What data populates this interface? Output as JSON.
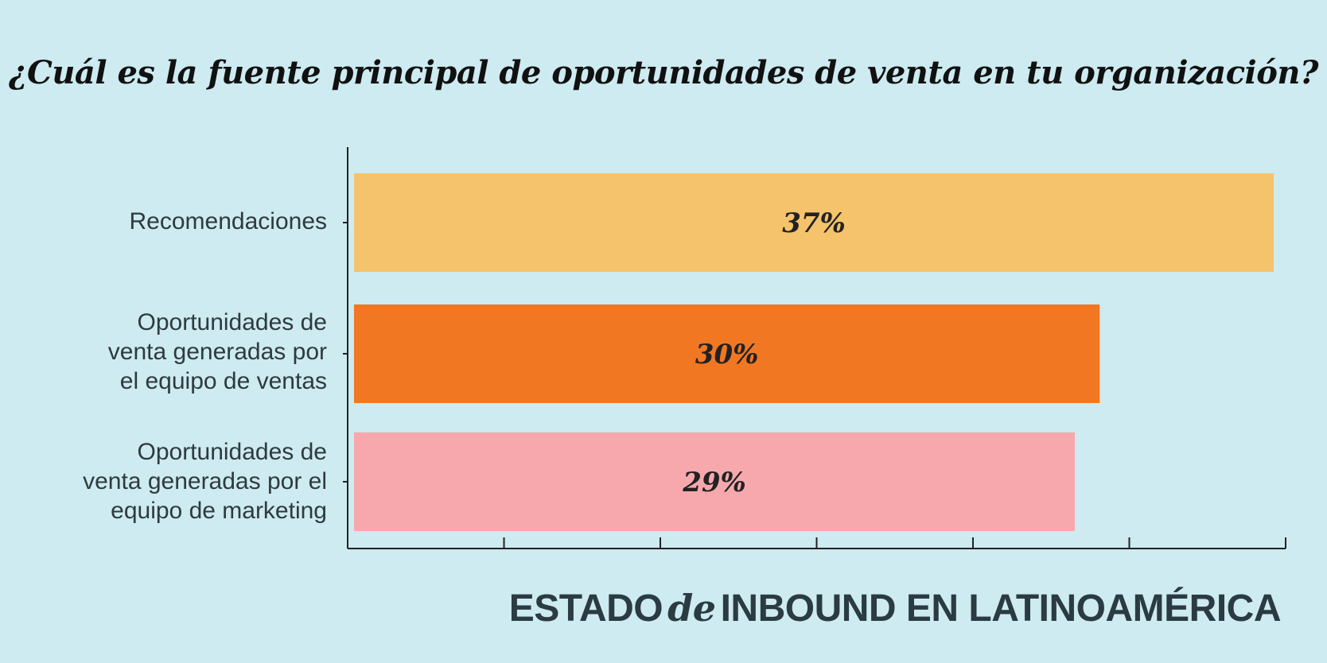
{
  "title": "¿Cuál es la fuente principal de oportunidades de venta en tu organización?",
  "footer": {
    "part1": "ESTADO",
    "part2": "de",
    "part3": "INBOUND EN LATINOAMÉRICA"
  },
  "chart_data": {
    "type": "bar",
    "orientation": "horizontal",
    "title": "¿Cuál es la fuente principal de oportunidades de venta en tu organización?",
    "categories": [
      "Recomendaciones",
      "Oportunidades de venta generadas por el equipo de ventas",
      "Oportunidades de venta generadas por el equipo de marketing"
    ],
    "category_lines": [
      [
        "Recomendaciones"
      ],
      [
        "Oportunidades de",
        "venta generadas por",
        "el equipo de ventas"
      ],
      [
        "Oportunidades de",
        "venta generadas por el",
        "equipo de marketing"
      ]
    ],
    "values": [
      37,
      30,
      29
    ],
    "data_labels": [
      "37%",
      "30%",
      "29%"
    ],
    "colors": [
      "#f5c36b",
      "#f27722",
      "#f7a8ad"
    ],
    "xlim": [
      0,
      37
    ],
    "grid": false,
    "legend": "none"
  }
}
